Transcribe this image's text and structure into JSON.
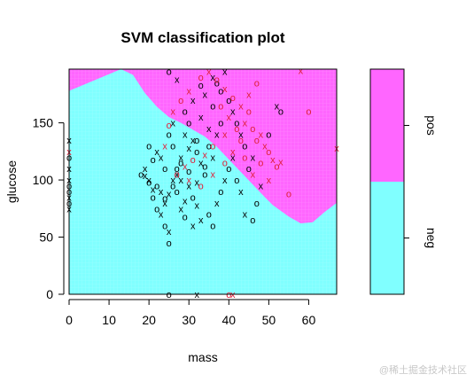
{
  "chart_data": {
    "type": "scatter",
    "title": "SVM classification plot",
    "xlabel": "mass",
    "ylabel": "glucose",
    "xlim": [
      0,
      67
    ],
    "ylim": [
      0,
      197
    ],
    "xticks": [
      0,
      10,
      20,
      30,
      40,
      50,
      60
    ],
    "yticks": [
      0,
      50,
      100,
      150
    ],
    "grid": false,
    "background_region": {
      "description": "decision region",
      "neg_color": "#80FFFF",
      "pos_color": "#FF66FF",
      "boundary": [
        [
          0,
          178
        ],
        [
          13,
          197
        ],
        [
          16,
          192
        ],
        [
          19,
          176
        ],
        [
          22,
          164
        ],
        [
          25,
          155
        ],
        [
          28,
          150
        ],
        [
          31,
          144
        ],
        [
          34,
          138
        ],
        [
          37,
          129
        ],
        [
          40,
          118
        ],
        [
          43,
          107
        ],
        [
          46,
          96
        ],
        [
          49,
          85
        ],
        [
          51,
          78
        ],
        [
          55,
          68
        ],
        [
          58,
          62
        ],
        [
          61,
          63
        ],
        [
          64,
          72
        ],
        [
          67,
          80
        ]
      ]
    },
    "legend": {
      "placement": "right",
      "categories": [
        "neg",
        "pos"
      ],
      "colors": [
        "#80FFFF",
        "#FF66FF"
      ]
    },
    "series": [
      {
        "name": "neg",
        "color": "#000000",
        "markers": [
          "x",
          "o"
        ],
        "points": [
          [
            0,
            135
          ],
          [
            0,
            120
          ],
          [
            0,
            100
          ],
          [
            0,
            90
          ],
          [
            0,
            85
          ],
          [
            0,
            80
          ],
          [
            0,
            75
          ],
          [
            0,
            95
          ],
          [
            0,
            110
          ],
          [
            20,
            130
          ],
          [
            22,
            125
          ],
          [
            21,
            118
          ],
          [
            19,
            110
          ],
          [
            18,
            105
          ],
          [
            20,
            100
          ],
          [
            22,
            95
          ],
          [
            23,
            90
          ],
          [
            21,
            85
          ],
          [
            24,
            80
          ],
          [
            22,
            75
          ],
          [
            23,
            70
          ],
          [
            24,
            60
          ],
          [
            25,
            55
          ],
          [
            25,
            45
          ],
          [
            26,
            100
          ],
          [
            27,
            110
          ],
          [
            28,
            120
          ],
          [
            26,
            130
          ],
          [
            29,
            140
          ],
          [
            30,
            150
          ],
          [
            31,
            135
          ],
          [
            32,
            125
          ],
          [
            33,
            115
          ],
          [
            34,
            105
          ],
          [
            30,
            95
          ],
          [
            31,
            85
          ],
          [
            32,
            78
          ],
          [
            35,
            70
          ],
          [
            33,
            65
          ],
          [
            36,
            60
          ],
          [
            28,
            100
          ],
          [
            27,
            90
          ],
          [
            29,
            82
          ],
          [
            30,
            108
          ],
          [
            32,
            98
          ],
          [
            34,
            112
          ],
          [
            36,
            120
          ],
          [
            35,
            130
          ],
          [
            37,
            140
          ],
          [
            38,
            150
          ],
          [
            33,
            155
          ],
          [
            36,
            165
          ],
          [
            34,
            175
          ],
          [
            37,
            185
          ],
          [
            39,
            195
          ],
          [
            25,
            195
          ],
          [
            27,
            188
          ],
          [
            40,
            170
          ],
          [
            41,
            160
          ],
          [
            42,
            150
          ],
          [
            43,
            140
          ],
          [
            44,
            130
          ],
          [
            41,
            120
          ],
          [
            40,
            110
          ],
          [
            39,
            100
          ],
          [
            38,
            90
          ],
          [
            37,
            80
          ],
          [
            42,
            100
          ],
          [
            43,
            90
          ],
          [
            45,
            110
          ],
          [
            46,
            120
          ],
          [
            47,
            80
          ],
          [
            44,
            70
          ],
          [
            46,
            65
          ],
          [
            48,
            95
          ],
          [
            50,
            140
          ],
          [
            52,
            165
          ],
          [
            53,
            160
          ],
          [
            28,
            75
          ],
          [
            29,
            68
          ],
          [
            31,
            60
          ],
          [
            24,
            110
          ],
          [
            23,
            120
          ],
          [
            25,
            140
          ],
          [
            26,
            150
          ],
          [
            29,
            160
          ],
          [
            31,
            170
          ],
          [
            33,
            183
          ],
          [
            36,
            190
          ],
          [
            38,
            178
          ],
          [
            35,
            145
          ],
          [
            32,
            135
          ],
          [
            30,
            128
          ],
          [
            28,
            115
          ],
          [
            27,
            105
          ],
          [
            26,
            95
          ],
          [
            25,
            88
          ],
          [
            24,
            84
          ],
          [
            21,
            92
          ],
          [
            20,
            98
          ],
          [
            19,
            104
          ],
          [
            25,
            0
          ],
          [
            32,
            0
          ]
        ]
      },
      {
        "name": "pos",
        "color": "#E0203A",
        "markers": [
          "x",
          "o"
        ],
        "points": [
          [
            0,
            125
          ],
          [
            33,
            190
          ],
          [
            35,
            195
          ],
          [
            37,
            188
          ],
          [
            39,
            180
          ],
          [
            41,
            172
          ],
          [
            43,
            165
          ],
          [
            45,
            160
          ],
          [
            44,
            150
          ],
          [
            46,
            145
          ],
          [
            48,
            140
          ],
          [
            47,
            135
          ],
          [
            49,
            130
          ],
          [
            50,
            125
          ],
          [
            51,
            118
          ],
          [
            52,
            112
          ],
          [
            53,
            116
          ],
          [
            55,
            88
          ],
          [
            58,
            196
          ],
          [
            60,
            160
          ],
          [
            67,
            128
          ],
          [
            38,
            165
          ],
          [
            40,
            155
          ],
          [
            42,
            145
          ],
          [
            39,
            140
          ],
          [
            36,
            130
          ],
          [
            34,
            122
          ],
          [
            31,
            118
          ],
          [
            29,
            112
          ],
          [
            27,
            105
          ],
          [
            30,
            100
          ],
          [
            33,
            95
          ],
          [
            36,
            105
          ],
          [
            39,
            115
          ],
          [
            41,
            125
          ],
          [
            43,
            135
          ],
          [
            45,
            175
          ],
          [
            47,
            185
          ],
          [
            30,
            178
          ],
          [
            28,
            170
          ],
          [
            26,
            160
          ],
          [
            25,
            148
          ],
          [
            24,
            130
          ],
          [
            44,
            120
          ],
          [
            46,
            105
          ],
          [
            48,
            115
          ],
          [
            50,
            100
          ],
          [
            40,
            0
          ],
          [
            41,
            0
          ]
        ]
      }
    ]
  },
  "watermark": "@稀土掘金技术社区"
}
